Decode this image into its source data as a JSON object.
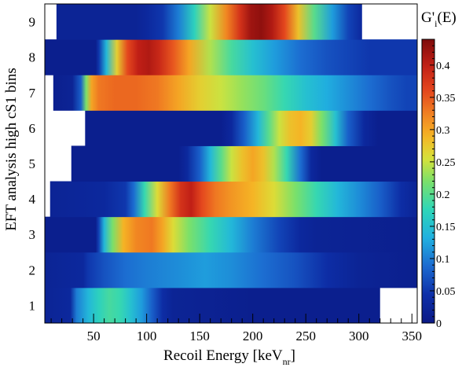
{
  "chart_data": {
    "type": "heatmap",
    "xlabel": "Recoil Energy [keV",
    "xlabel_sub": "nr",
    "xlabel_close": "]",
    "ylabel": "EFT analysis high cS1 bins",
    "colorbar_title": "G'",
    "colorbar_title_sub": "i",
    "colorbar_title_suffix": "(E)",
    "xlim": [
      4,
      355
    ],
    "x_ticks": [
      50,
      100,
      150,
      200,
      250,
      300,
      350
    ],
    "x_tick_labels": [
      "50",
      "100",
      "150",
      "200",
      "250",
      "300",
      "350"
    ],
    "y_bins": [
      1,
      2,
      3,
      4,
      5,
      6,
      7,
      8,
      9
    ],
    "y_tick_labels": [
      "1",
      "2",
      "3",
      "4",
      "5",
      "6",
      "7",
      "8",
      "9"
    ],
    "zlim": [
      0,
      0.44
    ],
    "colorbar_ticks": [
      0,
      0.05,
      0.1,
      0.15,
      0.2,
      0.25,
      0.3,
      0.35,
      0.4
    ],
    "colorbar_tick_labels": [
      "0",
      "0.05",
      "0.1",
      "0.15",
      "0.2",
      "0.25",
      "0.3",
      "0.35",
      "0.4"
    ],
    "colormap": "rainbow (dark blue → cyan → yellow → red → dark red)",
    "rows": [
      {
        "bin": 1,
        "xmin": 4,
        "xmax": 320,
        "stops": [
          [
            4,
            0.02
          ],
          [
            28,
            0.03
          ],
          [
            34,
            0.1
          ],
          [
            45,
            0.14
          ],
          [
            55,
            0.17
          ],
          [
            65,
            0.19
          ],
          [
            75,
            0.18
          ],
          [
            85,
            0.15
          ],
          [
            95,
            0.12
          ],
          [
            105,
            0.08
          ],
          [
            115,
            0.04
          ],
          [
            125,
            0.02
          ],
          [
            200,
            0.01
          ],
          [
            320,
            0.01
          ]
        ]
      },
      {
        "bin": 2,
        "xmin": 4,
        "xmax": 355,
        "stops": [
          [
            4,
            0.02
          ],
          [
            40,
            0.03
          ],
          [
            45,
            0.05
          ],
          [
            60,
            0.07
          ],
          [
            80,
            0.09
          ],
          [
            100,
            0.1
          ],
          [
            130,
            0.11
          ],
          [
            155,
            0.12
          ],
          [
            180,
            0.11
          ],
          [
            210,
            0.09
          ],
          [
            240,
            0.07
          ],
          [
            270,
            0.04
          ],
          [
            300,
            0.02
          ],
          [
            355,
            0.01
          ]
        ]
      },
      {
        "bin": 3,
        "xmin": 4,
        "xmax": 355,
        "stops": [
          [
            4,
            0.01
          ],
          [
            52,
            0.01
          ],
          [
            55,
            0.06
          ],
          [
            60,
            0.14
          ],
          [
            68,
            0.22
          ],
          [
            78,
            0.29
          ],
          [
            90,
            0.32
          ],
          [
            105,
            0.33
          ],
          [
            115,
            0.3
          ],
          [
            125,
            0.26
          ],
          [
            140,
            0.22
          ],
          [
            160,
            0.18
          ],
          [
            180,
            0.14
          ],
          [
            200,
            0.1
          ],
          [
            225,
            0.06
          ],
          [
            245,
            0.03
          ],
          [
            260,
            0.02
          ],
          [
            355,
            0.01
          ]
        ]
      },
      {
        "bin": 4,
        "xmin": 9,
        "xmax": 355,
        "stops": [
          [
            9,
            0.02
          ],
          [
            60,
            0.03
          ],
          [
            80,
            0.05
          ],
          [
            88,
            0.09
          ],
          [
            98,
            0.18
          ],
          [
            110,
            0.26
          ],
          [
            122,
            0.33
          ],
          [
            132,
            0.38
          ],
          [
            142,
            0.4
          ],
          [
            152,
            0.36
          ],
          [
            165,
            0.33
          ],
          [
            180,
            0.31
          ],
          [
            200,
            0.29
          ],
          [
            220,
            0.26
          ],
          [
            240,
            0.22
          ],
          [
            260,
            0.18
          ],
          [
            280,
            0.14
          ],
          [
            300,
            0.11
          ],
          [
            320,
            0.08
          ],
          [
            340,
            0.04
          ],
          [
            355,
            0.02
          ]
        ]
      },
      {
        "bin": 5,
        "xmin": 29,
        "xmax": 355,
        "stops": [
          [
            29,
            0.01
          ],
          [
            130,
            0.01
          ],
          [
            138,
            0.03
          ],
          [
            150,
            0.08
          ],
          [
            160,
            0.14
          ],
          [
            170,
            0.2
          ],
          [
            180,
            0.25
          ],
          [
            190,
            0.28
          ],
          [
            200,
            0.3
          ],
          [
            210,
            0.28
          ],
          [
            220,
            0.24
          ],
          [
            232,
            0.18
          ],
          [
            245,
            0.09
          ],
          [
            255,
            0.03
          ],
          [
            265,
            0.01
          ],
          [
            355,
            0.01
          ]
        ]
      },
      {
        "bin": 6,
        "xmin": 42,
        "xmax": 355,
        "stops": [
          [
            42,
            0.01
          ],
          [
            170,
            0.01
          ],
          [
            180,
            0.03
          ],
          [
            192,
            0.08
          ],
          [
            205,
            0.14
          ],
          [
            215,
            0.2
          ],
          [
            225,
            0.25
          ],
          [
            235,
            0.28
          ],
          [
            245,
            0.29
          ],
          [
            255,
            0.27
          ],
          [
            265,
            0.22
          ],
          [
            278,
            0.15
          ],
          [
            290,
            0.08
          ],
          [
            305,
            0.03
          ],
          [
            318,
            0.01
          ],
          [
            355,
            0.01
          ]
        ]
      },
      {
        "bin": 7,
        "xmin": 12,
        "xmax": 355,
        "stops": [
          [
            12,
            0.01
          ],
          [
            30,
            0.02
          ],
          [
            38,
            0.08
          ],
          [
            43,
            0.22
          ],
          [
            48,
            0.3
          ],
          [
            55,
            0.33
          ],
          [
            70,
            0.34
          ],
          [
            90,
            0.34
          ],
          [
            110,
            0.33
          ],
          [
            130,
            0.3
          ],
          [
            150,
            0.27
          ],
          [
            170,
            0.25
          ],
          [
            190,
            0.23
          ],
          [
            210,
            0.21
          ],
          [
            230,
            0.18
          ],
          [
            250,
            0.15
          ],
          [
            270,
            0.13
          ],
          [
            290,
            0.11
          ],
          [
            310,
            0.09
          ],
          [
            330,
            0.07
          ],
          [
            345,
            0.06
          ],
          [
            355,
            0.06
          ]
        ]
      },
      {
        "bin": 8,
        "xmin": 4,
        "xmax": 355,
        "stops": [
          [
            4,
            0.01
          ],
          [
            52,
            0.01
          ],
          [
            55,
            0.05
          ],
          [
            62,
            0.14
          ],
          [
            72,
            0.27
          ],
          [
            82,
            0.36
          ],
          [
            92,
            0.4
          ],
          [
            102,
            0.41
          ],
          [
            112,
            0.39
          ],
          [
            125,
            0.35
          ],
          [
            140,
            0.3
          ],
          [
            160,
            0.24
          ],
          [
            180,
            0.19
          ],
          [
            200,
            0.15
          ],
          [
            220,
            0.12
          ],
          [
            245,
            0.09
          ],
          [
            270,
            0.07
          ],
          [
            290,
            0.06
          ],
          [
            310,
            0.05
          ],
          [
            330,
            0.05
          ],
          [
            353,
            0.05
          ]
        ]
      },
      {
        "bin": 9,
        "xmin": 15,
        "xmax": 303,
        "stops": [
          [
            15,
            0.02
          ],
          [
            90,
            0.02
          ],
          [
            100,
            0.03
          ],
          [
            115,
            0.05
          ],
          [
            130,
            0.1
          ],
          [
            145,
            0.17
          ],
          [
            160,
            0.25
          ],
          [
            175,
            0.32
          ],
          [
            188,
            0.38
          ],
          [
            198,
            0.42
          ],
          [
            208,
            0.43
          ],
          [
            218,
            0.41
          ],
          [
            230,
            0.36
          ],
          [
            243,
            0.28
          ],
          [
            258,
            0.2
          ],
          [
            275,
            0.12
          ],
          [
            290,
            0.06
          ],
          [
            303,
            0.03
          ]
        ]
      }
    ]
  }
}
